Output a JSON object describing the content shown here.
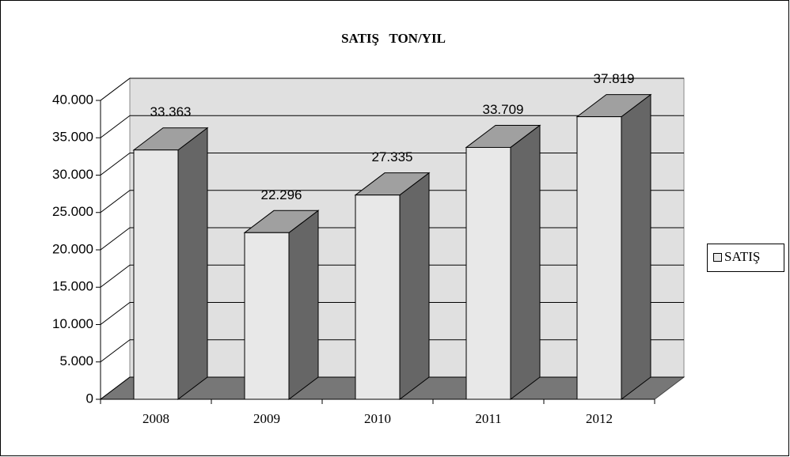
{
  "chart_data": {
    "type": "bar3d",
    "title": "SATIŞ   TON/YIL",
    "categories": [
      "2008",
      "2009",
      "2010",
      "2011",
      "2012"
    ],
    "series": [
      {
        "name": "SATIŞ",
        "color": "#e8e8e8",
        "values": [
          33363,
          22296,
          27335,
          33709,
          37819
        ],
        "value_labels": [
          "33.363",
          "22.296",
          "27.335",
          "33.709",
          "37.819"
        ]
      }
    ],
    "ylim": [
      0,
      40000
    ],
    "yticks": [
      0,
      {
        "value": 5000,
        "label": "5.000"
      },
      {
        "value": 10000,
        "label": "10.000"
      },
      {
        "value": 15000,
        "label": "15.000"
      },
      {
        "value": 20000,
        "label": "20.000"
      },
      {
        "value": 25000,
        "label": "25.000"
      },
      {
        "value": 30000,
        "label": "30.000"
      },
      {
        "value": 35000,
        "label": "35.000"
      },
      {
        "value": 40000,
        "label": "40.000"
      }
    ],
    "grid": true,
    "legend": "right"
  }
}
